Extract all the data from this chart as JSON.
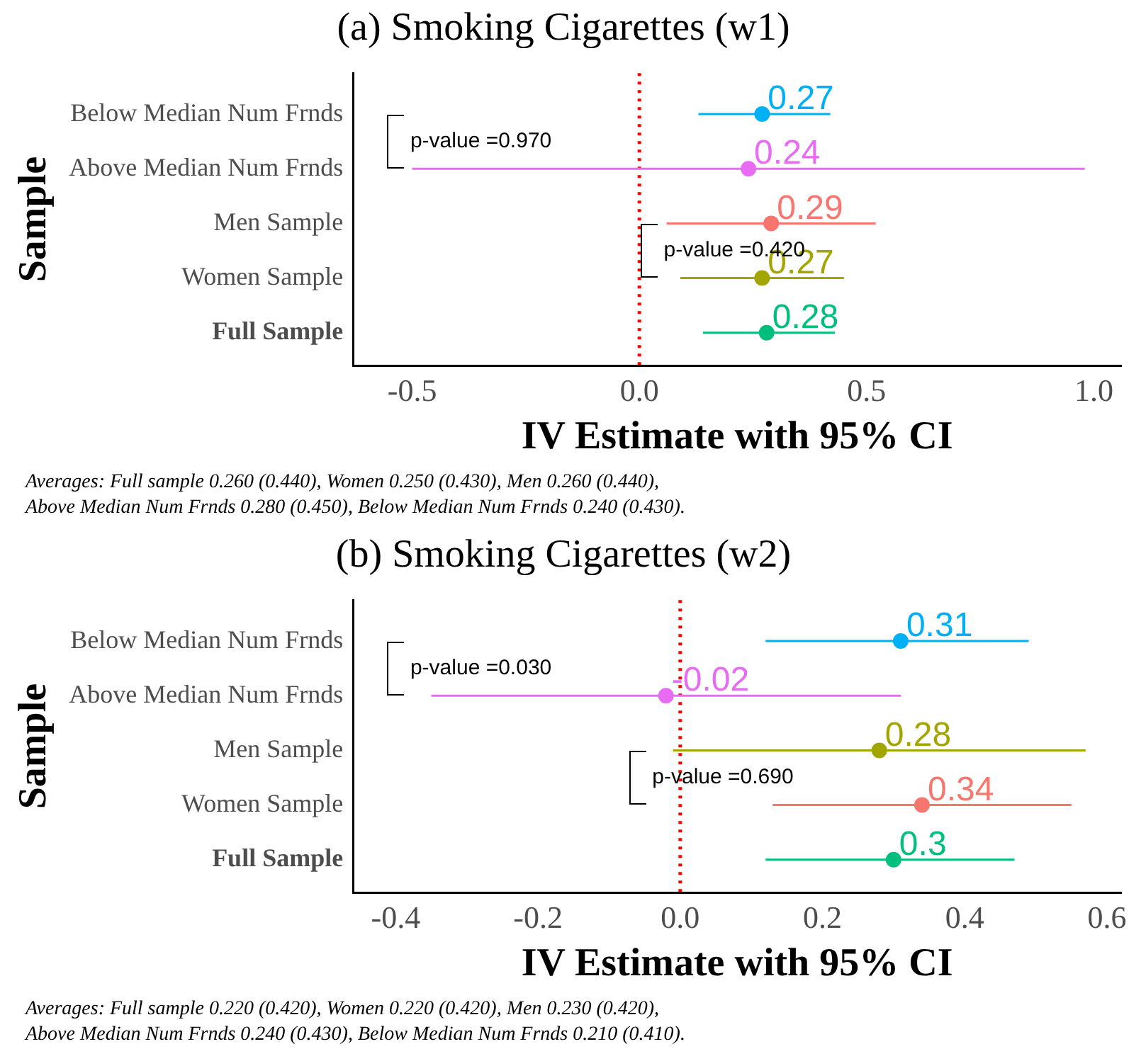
{
  "chart_data": [
    {
      "type": "scatter",
      "orientation": "horizontal",
      "title": "(a) Smoking Cigarettes (w1)",
      "xlabel": "IV Estimate with 95% CI",
      "ylabel": "Sample",
      "categories": [
        "Below Median Num Frnds",
        "Above Median Num Frnds",
        "Men Sample",
        "Women Sample",
        "Full Sample"
      ],
      "values": [
        0.27,
        0.24,
        0.29,
        0.27,
        0.28
      ],
      "colors": [
        "#00b0f6",
        "#e76bf3",
        "#f8766d",
        "#a3a500",
        "#00bf7d"
      ],
      "errors": [
        [
          0.13,
          0.42
        ],
        [
          -0.5,
          0.98
        ],
        [
          0.06,
          0.52
        ],
        [
          0.09,
          0.45
        ],
        [
          0.14,
          0.43
        ]
      ],
      "data_labels": true,
      "marker": "circle",
      "xlim": [
        -0.63,
        1.06
      ],
      "xticks": [
        {
          "value": -0.5,
          "label": "-0.5"
        },
        {
          "value": 0,
          "label": "0.0"
        },
        {
          "value": 0.5,
          "label": "0.5"
        },
        {
          "value": 1,
          "label": "1.0"
        }
      ],
      "ref_lines": [
        {
          "axis": "x",
          "value": 0,
          "color": "#ff0000",
          "line_style": "dotted"
        }
      ],
      "annotations": [
        "p-value =0.970",
        "p-value =0.420",
        "Averages: Full sample 0.260 (0.440), Women 0.250 (0.430), Men 0.260 (0.440),\nAbove Median Num Frnds 0.280 (0.450), Below Median Num Frnds 0.240 (0.430)."
      ]
    },
    {
      "type": "scatter",
      "orientation": "horizontal",
      "title": "(b) Smoking Cigarettes (w2)",
      "xlabel": "IV Estimate with 95% CI",
      "ylabel": "Sample",
      "categories": [
        "Below Median Num Frnds",
        "Above Median Num Frnds",
        "Men Sample",
        "Women Sample",
        "Full Sample"
      ],
      "values": [
        0.31,
        -0.02,
        0.28,
        0.34,
        0.3
      ],
      "colors": [
        "#00b0f6",
        "#e76bf3",
        "#a3a500",
        "#f8766d",
        "#00bf7d"
      ],
      "errors": [
        [
          0.12,
          0.49
        ],
        [
          -0.35,
          0.31
        ],
        [
          -0.01,
          0.57
        ],
        [
          0.13,
          0.55
        ],
        [
          0.12,
          0.47
        ]
      ],
      "data_labels": true,
      "marker": "circle",
      "xlim": [
        -0.46,
        0.62
      ],
      "xticks": [
        {
          "value": -0.4,
          "label": "-0.4"
        },
        {
          "value": -0.2,
          "label": "-0.2"
        },
        {
          "value": 0,
          "label": "0.0"
        },
        {
          "value": 0.2,
          "label": "0.2"
        },
        {
          "value": 0.4,
          "label": "0.4"
        },
        {
          "value": 0.6,
          "label": "0.6"
        }
      ],
      "ref_lines": [
        {
          "axis": "x",
          "value": 0,
          "color": "#ff0000",
          "line_style": "dotted"
        }
      ],
      "annotations": [
        "p-value =0.030",
        "p-value =0.690",
        "Averages: Full sample 0.220 (0.420), Women 0.220 (0.420), Men 0.230 (0.420),\nAbove Median Num Frnds 0.240 (0.430), Below Median Num Frnds 0.210 (0.410)."
      ]
    }
  ]
}
